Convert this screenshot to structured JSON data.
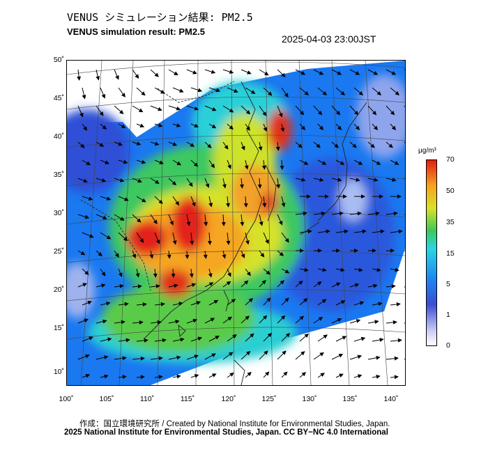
{
  "title_jp": "VENUS シミュレーション結果: PM2.5",
  "title_en": "VENUS simulation result: PM2.5",
  "timestamp": "2025-04-03 23:00JST",
  "lat_ticks": [
    "50˚",
    "45˚",
    "40˚",
    "35˚",
    "30˚",
    "25˚",
    "20˚",
    "15˚",
    "10˚"
  ],
  "lon_ticks": [
    "100˚",
    "105˚",
    "110˚",
    "115˚",
    "120˚",
    "125˚",
    "130˚",
    "135˚",
    "140˚"
  ],
  "colorbar": {
    "unit": "μg/m³",
    "labels": [
      "70",
      "50",
      "35",
      "15",
      "5",
      "1",
      "0"
    ],
    "colors": [
      "#e11f12",
      "#f7a41e",
      "#d8e22a",
      "#3ec85a",
      "#2ad6e4",
      "#1e86f2",
      "#3a4ed2",
      "#ffffff"
    ]
  },
  "credit_line1": "作成：国立環境研究所 / Created by National Institute for Environmental Studies, Japan.",
  "credit_line2": "2025 National Institute for Environmental Studies, Japan. CC BY−NC 4.0 International"
}
